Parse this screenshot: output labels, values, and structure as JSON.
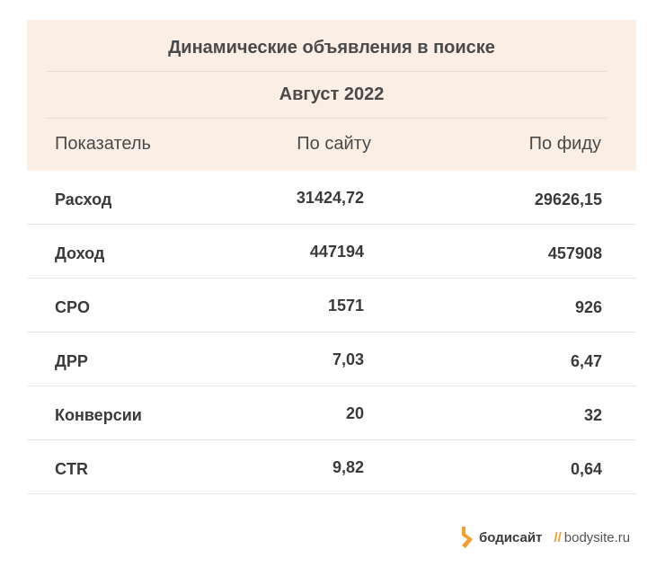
{
  "table": {
    "title": "Динамические объявления в поиске",
    "period": "Август 2022",
    "columns": [
      "Показатель",
      "По сайту",
      "По фиду"
    ],
    "rows": [
      {
        "label": "Расход",
        "site": "31424,72",
        "feed": "29626,15"
      },
      {
        "label": "Доход",
        "site": "447194",
        "feed": "457908"
      },
      {
        "label": "CPO",
        "site": "1571",
        "feed": "926"
      },
      {
        "label": "ДРР",
        "site": "7,03",
        "feed": "6,47"
      },
      {
        "label": "Конверсии",
        "site": "20",
        "feed": "32"
      },
      {
        "label": "CTR",
        "site": "9,82",
        "feed": "0,64"
      }
    ]
  },
  "footer": {
    "brand": "бодисайт",
    "divider": "//",
    "site": "bodysite.ru",
    "logo_icon": "bodysite-logo-icon",
    "accent_color": "#f0a030"
  }
}
